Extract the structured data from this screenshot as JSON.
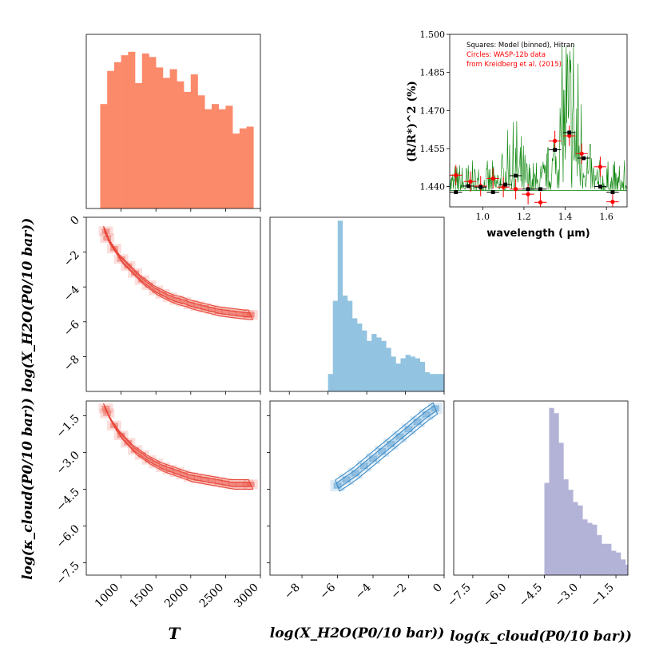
{
  "chart_data": [
    {
      "panel": "T-histogram",
      "type": "bar",
      "xlim": [
        500,
        3000
      ],
      "ylim": [
        0,
        1.0
      ],
      "color": "#fb8a6b",
      "bin_edges": [
        700,
        800,
        900,
        1000,
        1100,
        1200,
        1300,
        1400,
        1500,
        1600,
        1700,
        1800,
        1900,
        2000,
        2100,
        2200,
        2300,
        2400,
        2500,
        2600,
        2700,
        2800,
        2900
      ],
      "values": [
        0.6,
        0.79,
        0.84,
        0.88,
        0.9,
        0.72,
        0.89,
        0.87,
        0.81,
        0.75,
        0.8,
        0.73,
        0.67,
        0.77,
        0.65,
        0.57,
        0.6,
        0.57,
        0.59,
        0.43,
        0.46,
        0.47
      ]
    },
    {
      "panel": "H2O-histogram",
      "type": "bar",
      "xlim": [
        -9,
        0
      ],
      "ylim": [
        0,
        1.0
      ],
      "color": "#92c3e0",
      "bin_edges": [
        -6.0,
        -5.75,
        -5.5,
        -5.25,
        -5.0,
        -4.75,
        -4.5,
        -4.25,
        -4.0,
        -3.75,
        -3.5,
        -3.25,
        -3.0,
        -2.75,
        -2.5,
        -2.25,
        -2.0,
        -1.75,
        -1.5,
        -1.25,
        -1.0,
        -0.75,
        -0.5,
        -0.25,
        0.0
      ],
      "values": [
        0.1,
        0.52,
        0.98,
        0.55,
        0.52,
        0.42,
        0.39,
        0.35,
        0.29,
        0.33,
        0.31,
        0.29,
        0.25,
        0.2,
        0.16,
        0.19,
        0.21,
        0.2,
        0.19,
        0.17,
        0.11,
        0.1,
        0.1,
        0.1
      ]
    },
    {
      "panel": "kappa-histogram",
      "type": "bar",
      "xlim": [
        -8.3,
        -1.0
      ],
      "ylim": [
        0,
        1.0
      ],
      "color": "#b3b3d8",
      "bin_edges": [
        -4.5,
        -4.3,
        -4.1,
        -3.9,
        -3.7,
        -3.5,
        -3.3,
        -3.1,
        -2.9,
        -2.7,
        -2.5,
        -2.3,
        -2.1,
        -1.9,
        -1.7,
        -1.5,
        -1.3,
        -1.1,
        -1.0
      ],
      "values": [
        0.53,
        0.96,
        0.93,
        0.76,
        0.55,
        0.49,
        0.42,
        0.4,
        0.32,
        0.3,
        0.29,
        0.23,
        0.18,
        0.18,
        0.14,
        0.13,
        0.09,
        0.06
      ]
    },
    {
      "panel": "T-vs-H2O",
      "type": "heatmap",
      "xlim": [
        500,
        3000
      ],
      "ylim": [
        -10,
        0
      ],
      "color": "#e8463a",
      "ridge_x": [
        780,
        800,
        900,
        1000,
        1100,
        1200,
        1300,
        1400,
        1500,
        1600,
        1700,
        1800,
        1900,
        2000,
        2100,
        2200,
        2300,
        2400,
        2500,
        2600,
        2700,
        2800,
        2860
      ],
      "ridge_y": [
        -0.8,
        -1.2,
        -1.8,
        -2.4,
        -2.8,
        -3.2,
        -3.6,
        -3.9,
        -4.2,
        -4.4,
        -4.6,
        -4.75,
        -4.85,
        -5.0,
        -5.1,
        -5.2,
        -5.3,
        -5.4,
        -5.45,
        -5.5,
        -5.55,
        -5.6,
        -5.6
      ]
    },
    {
      "panel": "T-vs-kappa",
      "type": "heatmap",
      "xlim": [
        500,
        3000
      ],
      "ylim": [
        -8.0,
        -0.9
      ],
      "color": "#e8463a",
      "ridge_x": [
        780,
        800,
        900,
        1000,
        1100,
        1200,
        1300,
        1400,
        1500,
        1600,
        1700,
        1800,
        1900,
        2000,
        2100,
        2200,
        2300,
        2400,
        2500,
        2600,
        2700,
        2800,
        2860
      ],
      "ridge_y": [
        -1.2,
        -1.4,
        -1.9,
        -2.3,
        -2.6,
        -2.9,
        -3.1,
        -3.3,
        -3.45,
        -3.6,
        -3.7,
        -3.8,
        -3.9,
        -4.0,
        -4.05,
        -4.1,
        -4.15,
        -4.2,
        -4.25,
        -4.3,
        -4.3,
        -4.3,
        -4.3
      ]
    },
    {
      "panel": "H2O-vs-kappa",
      "type": "heatmap",
      "xlim": [
        -9.8,
        0
      ],
      "ylim": [
        -8.0,
        -0.9
      ],
      "color": "#3a8cc8",
      "ridge_x": [
        -6.0,
        -5.5,
        -5.0,
        -4.5,
        -4.0,
        -3.5,
        -3.0,
        -2.5,
        -2.0,
        -1.5,
        -1.0,
        -0.5
      ],
      "ridge_y": [
        -4.35,
        -4.1,
        -3.85,
        -3.55,
        -3.25,
        -2.95,
        -2.65,
        -2.35,
        -2.05,
        -1.75,
        -1.45,
        -1.2
      ]
    },
    {
      "panel": "transmission-spectrum",
      "type": "scatter",
      "xlim": [
        0.84,
        1.7
      ],
      "ylim": [
        1.432,
        1.5
      ],
      "xlabel": "wavelength ( μm)",
      "xticks": [
        "1.0",
        "1.2",
        "1.4",
        "1.6"
      ],
      "yticks": [
        "1.440",
        "1.455",
        "1.470",
        "1.485",
        "1.500"
      ],
      "legend": [
        "Squares: Model (binned), Hitran",
        "Circles: WASP-12b data",
        "from Kreidberg et al. (2015)"
      ],
      "model_color": "#008000",
      "model": {
        "x": [
          0.87,
          0.93,
          0.99,
          1.05,
          1.11,
          1.16,
          1.22,
          1.28,
          1.35,
          1.42,
          1.49,
          1.57,
          1.63
        ],
        "y": [
          1.4378,
          1.4402,
          1.4398,
          1.4378,
          1.4408,
          1.4443,
          1.439,
          1.439,
          1.4545,
          1.4613,
          1.4512,
          1.44,
          1.4378
        ]
      },
      "data": {
        "x": [
          0.87,
          0.94,
          0.99,
          1.05,
          1.1,
          1.16,
          1.22,
          1.28,
          1.35,
          1.42,
          1.48,
          1.57,
          1.63
        ],
        "y": [
          1.4445,
          1.442,
          1.4402,
          1.4432,
          1.4398,
          1.439,
          1.437,
          1.4338,
          1.458,
          1.46,
          1.453,
          1.4478,
          1.434
        ],
        "err": [
          0.004,
          0.004,
          0.004,
          0.004,
          0.004,
          0.004,
          0.004,
          0.004,
          0.004,
          0.004,
          0.004,
          0.004,
          0.004
        ]
      }
    }
  ],
  "axes": {
    "T": {
      "ticks": [
        "1000",
        "1500",
        "2000",
        "2500",
        "3000"
      ]
    },
    "H2O": {
      "ticks": [
        "−8",
        "−6",
        "−4",
        "−2",
        "0"
      ],
      "yticks": [
        "0",
        "−2",
        "−4",
        "−6",
        "−8"
      ]
    },
    "kappa": {
      "ticks": [
        "−7.5",
        "−6.0",
        "−4.5",
        "−3.0",
        "−1.5"
      ],
      "yticks": [
        "−1.5",
        "−3.0",
        "−4.5",
        "−6.0",
        "−7.5"
      ]
    }
  },
  "labels": {
    "x_T": "T",
    "x_H2O": "log(X_H2O(P0/10 bar))",
    "x_kappa": "log(κ_cloud(P0/10 bar))",
    "y_H2O": "log(X_H2O(P0/10 bar))",
    "y_kappa": "log(κ_cloud(P0/10 bar))",
    "spec_y": "(R/R*)^2 (%)"
  }
}
